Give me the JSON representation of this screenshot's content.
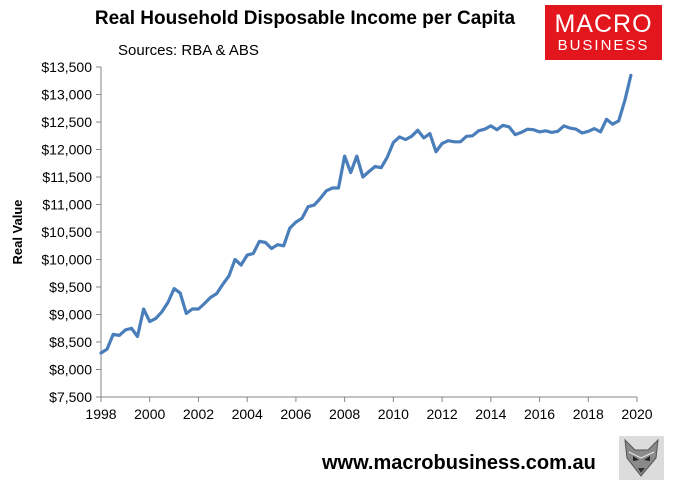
{
  "header": {
    "title": "Real Household Disposable Income per Capita",
    "subtitle": "Sources: RBA & ABS"
  },
  "logo": {
    "line1": "MACRO",
    "line2": "BUSINESS",
    "color": "#e3161e",
    "text_color": "#ffffff"
  },
  "footer": {
    "website": "www.macrobusiness.com.au",
    "icon": "fox-icon"
  },
  "chart_data": {
    "type": "line",
    "title": "Real Household Disposable Income per Capita",
    "subtitle": "Sources: RBA & ABS",
    "xlabel": "",
    "ylabel": "Real Value",
    "xlim": [
      1998,
      2020
    ],
    "ylim": [
      7500,
      13500
    ],
    "x_ticks": [
      1998,
      2000,
      2002,
      2004,
      2006,
      2008,
      2010,
      2012,
      2014,
      2016,
      2018,
      2020
    ],
    "x_tick_labels": [
      "1998",
      "2000",
      "2002",
      "2004",
      "2006",
      "2008",
      "2010",
      "2012",
      "2014",
      "2016",
      "2018",
      "2020"
    ],
    "y_ticks": [
      7500,
      8000,
      8500,
      9000,
      9500,
      10000,
      10500,
      11000,
      11500,
      12000,
      12500,
      13000,
      13500
    ],
    "y_tick_labels": [
      "$7,500",
      "$8,000",
      "$8,500",
      "$9,000",
      "$9,500",
      "$10,000",
      "$10,500",
      "$11,000",
      "$11,500",
      "$12,000",
      "$12,500",
      "$13,000",
      "$13,500"
    ],
    "grid": false,
    "legend": "none",
    "series_color": "#4a7ebb",
    "series": [
      {
        "x": [
          1998.0,
          1998.25,
          1998.5,
          1998.75,
          1999.0,
          1999.25,
          1999.5,
          1999.75,
          2000.0,
          2000.25,
          2000.5,
          2000.75,
          2001.0,
          2001.25,
          2001.5,
          2001.75,
          2002.0,
          2002.25,
          2002.5,
          2002.75,
          2003.0,
          2003.25,
          2003.5,
          2003.75,
          2004.0,
          2004.25,
          2004.5,
          2004.75,
          2005.0,
          2005.25,
          2005.5,
          2005.75,
          2006.0,
          2006.25,
          2006.5,
          2006.75,
          2007.0,
          2007.25,
          2007.5,
          2007.75,
          2008.0,
          2008.25,
          2008.5,
          2008.75,
          2009.0,
          2009.25,
          2009.5,
          2009.75,
          2010.0,
          2010.25,
          2010.5,
          2010.75,
          2011.0,
          2011.25,
          2011.5,
          2011.75,
          2012.0,
          2012.25,
          2012.5,
          2012.75,
          2013.0,
          2013.25,
          2013.5,
          2013.75,
          2014.0,
          2014.25,
          2014.5,
          2014.75,
          2015.0,
          2015.25,
          2015.5,
          2015.75,
          2016.0,
          2016.25,
          2016.5,
          2016.75,
          2017.0,
          2017.25,
          2017.5,
          2017.75,
          2018.0,
          2018.25,
          2018.5,
          2018.75,
          2019.0,
          2019.25,
          2019.5,
          2019.75
        ],
        "values": [
          8300,
          8370,
          8640,
          8620,
          8720,
          8750,
          8600,
          9100,
          8870,
          8930,
          9050,
          9220,
          9470,
          9390,
          9020,
          9100,
          9100,
          9200,
          9310,
          9380,
          9550,
          9700,
          10000,
          9900,
          10080,
          10110,
          10330,
          10310,
          10200,
          10270,
          10250,
          10570,
          10680,
          10750,
          10960,
          10990,
          11110,
          11250,
          11300,
          11300,
          11880,
          11580,
          11880,
          11500,
          11600,
          11690,
          11670,
          11860,
          12130,
          12230,
          12180,
          12240,
          12350,
          12210,
          12290,
          11960,
          12110,
          12160,
          12140,
          12140,
          12240,
          12250,
          12340,
          12370,
          12430,
          12360,
          12440,
          12410,
          12270,
          12310,
          12370,
          12360,
          12320,
          12340,
          12310,
          12330,
          12430,
          12390,
          12370,
          12300,
          12330,
          12380,
          12320,
          12550,
          12460,
          12520,
          12890,
          13350
        ]
      }
    ]
  }
}
